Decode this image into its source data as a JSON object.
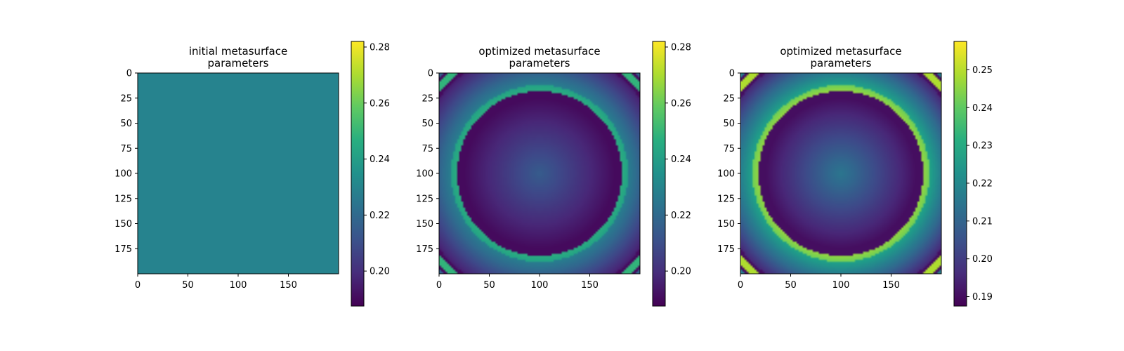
{
  "chart_data": [
    {
      "type": "heatmap",
      "title_line1": "initial metasurface",
      "title_line2": "parameters",
      "pattern": "uniform",
      "uniform_value": 0.23,
      "xlim": [
        0,
        200
      ],
      "ylim": [
        200,
        0
      ],
      "x_ticks": [
        "0",
        "50",
        "100",
        "150"
      ],
      "y_ticks": [
        "0",
        "25",
        "50",
        "75",
        "100",
        "125",
        "150",
        "175"
      ],
      "colorbar": {
        "range": [
          0.1875,
          0.282
        ],
        "ticks": [
          "0.20",
          "0.22",
          "0.24",
          "0.26",
          "0.28"
        ],
        "tick_values": [
          0.2,
          0.22,
          0.24,
          0.26,
          0.28
        ]
      }
    },
    {
      "type": "heatmap",
      "title_line1": "optimized metasurface",
      "title_line2": "parameters",
      "pattern": "rings",
      "center": [
        100,
        100
      ],
      "xlim": [
        0,
        200
      ],
      "ylim": [
        200,
        0
      ],
      "x_ticks": [
        "0",
        "50",
        "100",
        "150"
      ],
      "y_ticks": [
        "0",
        "25",
        "50",
        "75",
        "100",
        "125",
        "150",
        "175"
      ],
      "colorbar": {
        "range": [
          0.1875,
          0.282
        ],
        "ticks": [
          "0.20",
          "0.22",
          "0.24",
          "0.26",
          "0.28"
        ],
        "tick_values": [
          0.2,
          0.22,
          0.24,
          0.26,
          0.28
        ]
      }
    },
    {
      "type": "heatmap",
      "title_line1": "optimized metasurface",
      "title_line2": "parameters",
      "pattern": "rings",
      "center": [
        100,
        100
      ],
      "xlim": [
        0,
        200
      ],
      "ylim": [
        200,
        0
      ],
      "x_ticks": [
        "0",
        "50",
        "100",
        "150"
      ],
      "y_ticks": [
        "0",
        "25",
        "50",
        "75",
        "100",
        "125",
        "150",
        "175"
      ],
      "colorbar": {
        "range": [
          0.1875,
          0.2575
        ],
        "ticks": [
          "0.19",
          "0.20",
          "0.21",
          "0.22",
          "0.23",
          "0.24",
          "0.25"
        ],
        "tick_values": [
          0.19,
          0.2,
          0.21,
          0.22,
          0.23,
          0.24,
          0.25
        ]
      }
    }
  ],
  "colors": {
    "colormap": "viridis"
  }
}
